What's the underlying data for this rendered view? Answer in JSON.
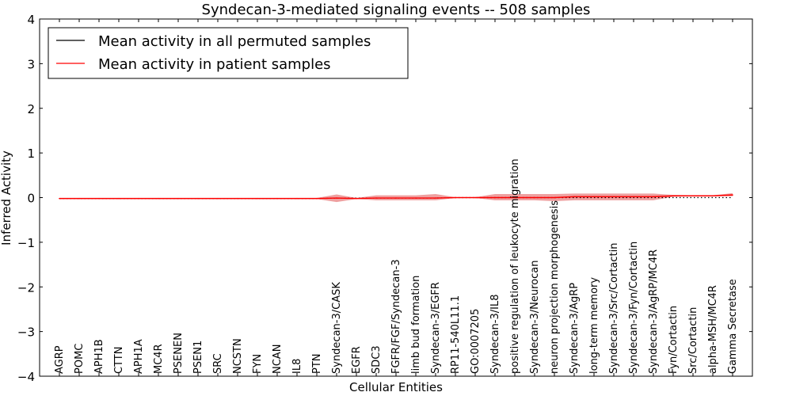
{
  "chart_data": {
    "type": "line",
    "title": "Syndecan-3-mediated signaling events -- 508 samples",
    "xlabel": "Cellular Entities",
    "ylabel": "Inferred Activity",
    "ylim": [
      -4,
      4
    ],
    "yticks": [
      {
        "value": 4,
        "label": "4"
      },
      {
        "value": 3,
        "label": "3"
      },
      {
        "value": 2,
        "label": "2"
      },
      {
        "value": 1,
        "label": "1"
      },
      {
        "value": 0,
        "label": "0"
      },
      {
        "value": -1,
        "label": "−1"
      },
      {
        "value": -2,
        "label": "−2"
      },
      {
        "value": -3,
        "label": "−3"
      },
      {
        "value": -4,
        "label": "−4"
      }
    ],
    "categories": [
      "AGRP",
      "POMC",
      "APH1B",
      "CTTN",
      "APH1A",
      "MC4R",
      "PSENEN",
      "PSEN1",
      "SRC",
      "NCSTN",
      "FYN",
      "NCAN",
      "IL8",
      "PTN",
      "Syndecan-3/CASK",
      "EGFR",
      "SDC3",
      "FGFR/FGF/Syndecan-3",
      "limb bud formation",
      "Syndecan-3/EGFR",
      "RP11-540L11.1",
      "GO:0007205",
      "Syndecan-3/IL8",
      "positive regulation of leukocyte migration",
      "Syndecan-3/Neurocan",
      "neuron projection morphogenesis",
      "Syndecan-3/AgRP",
      "long-term memory",
      "Syndecan-3/Src/Cortactin",
      "Syndecan-3/Fyn/Cortactin",
      "Syndecan-3/AgRP/MC4R",
      "Fyn/Cortactin",
      "Src/Cortactin",
      "alpha-MSH/MC4R",
      "Gamma Secretase"
    ],
    "legend_position": "top-left",
    "series": [
      {
        "name": "Mean activity in all permuted samples",
        "color": "#000000",
        "style": "dotted",
        "values": [
          -0.02,
          -0.02,
          -0.02,
          -0.02,
          -0.02,
          -0.02,
          -0.02,
          -0.02,
          -0.02,
          -0.02,
          -0.02,
          -0.02,
          -0.02,
          -0.02,
          -0.01,
          -0.01,
          -0.01,
          -0.01,
          -0.01,
          -0.01,
          0.0,
          0.0,
          0.0,
          0.0,
          0.0,
          0.0,
          0.0,
          0.0,
          0.0,
          0.0,
          0.0,
          0.0,
          0.0,
          0.0,
          0.0
        ]
      },
      {
        "name": "Mean activity in patient samples",
        "color": "#ff0000",
        "style": "solid",
        "values": [
          -0.02,
          -0.02,
          -0.02,
          -0.02,
          -0.02,
          -0.02,
          -0.02,
          -0.02,
          -0.02,
          -0.02,
          -0.02,
          -0.02,
          -0.02,
          -0.02,
          -0.01,
          -0.02,
          -0.01,
          -0.01,
          -0.01,
          -0.01,
          0.0,
          0.0,
          0.0,
          0.0,
          0.0,
          0.0,
          0.02,
          0.02,
          0.02,
          0.02,
          0.02,
          0.04,
          0.04,
          0.04,
          0.06
        ],
        "band_lower": [
          -0.03,
          -0.03,
          -0.03,
          -0.03,
          -0.03,
          -0.03,
          -0.03,
          -0.03,
          -0.03,
          -0.03,
          -0.03,
          -0.03,
          -0.03,
          -0.03,
          -0.1,
          -0.03,
          -0.06,
          -0.06,
          -0.06,
          -0.06,
          -0.01,
          -0.01,
          -0.06,
          -0.06,
          -0.06,
          -0.08,
          -0.06,
          -0.06,
          -0.06,
          -0.06,
          -0.06,
          0.02,
          0.03,
          0.03,
          0.03
        ],
        "band_upper": [
          -0.01,
          -0.01,
          -0.01,
          -0.01,
          -0.01,
          -0.01,
          -0.01,
          -0.01,
          -0.01,
          -0.01,
          -0.01,
          -0.01,
          -0.01,
          -0.01,
          0.07,
          -0.01,
          0.05,
          0.05,
          0.05,
          0.08,
          0.01,
          0.01,
          0.08,
          0.08,
          0.08,
          0.08,
          0.09,
          0.09,
          0.09,
          0.09,
          0.09,
          0.06,
          0.05,
          0.05,
          0.1
        ],
        "band_color": "#e88080"
      }
    ]
  }
}
